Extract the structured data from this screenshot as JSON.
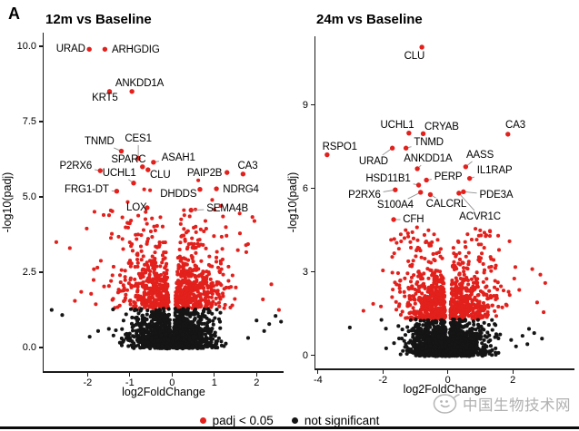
{
  "figure": {
    "tag": "A"
  },
  "colors": {
    "significant_red": "#e2201c",
    "not_significant_black": "#151515",
    "axis": "#1a1a1a",
    "leader_line": "#8f8f8f",
    "watermark_gray": "#b0b0b0",
    "background": "#ffffff"
  },
  "legend": {
    "items": [
      {
        "label": "padj < 0.05",
        "color": "#e2201c",
        "icon": "red-dot"
      },
      {
        "label": "not significant",
        "color": "#151515",
        "icon": "black-dot"
      }
    ]
  },
  "watermark": {
    "text": "中国生物技术网",
    "icon": "doodle-face-logo"
  },
  "chart_data": [
    {
      "type": "scatter",
      "subtype": "volcano",
      "title": "12m vs Baseline",
      "xlabel": "log2FoldChange",
      "ylabel": "-log10(padj)",
      "xlim": [
        -3.04,
        2.64
      ],
      "ylim": [
        -0.78,
        10.45
      ],
      "x_ticks": [
        {
          "value": -2,
          "label": "-2"
        },
        {
          "value": -1,
          "label": "-1"
        },
        {
          "value": 0,
          "label": "0"
        },
        {
          "value": 1,
          "label": "1"
        },
        {
          "value": 2,
          "label": "2"
        }
      ],
      "y_ticks": [
        {
          "value": 0,
          "label": "0.0"
        },
        {
          "value": 2.5,
          "label": "2.5"
        },
        {
          "value": 5,
          "label": "5.0"
        },
        {
          "value": 7.5,
          "label": "7.5"
        },
        {
          "value": 10,
          "label": "10.0"
        }
      ],
      "significance_threshold": 1.3,
      "labeled_genes": [
        {
          "name": "URAD",
          "x": -1.96,
          "y": 9.9,
          "lx": -2.4,
          "ly": 9.92
        },
        {
          "name": "ARHGDIG",
          "x": -1.59,
          "y": 9.9,
          "lx": -0.86,
          "ly": 9.88
        },
        {
          "name": "ANKDD1A",
          "x": -0.95,
          "y": 8.5,
          "lx": -0.77,
          "ly": 8.77
        },
        {
          "name": "KRT5",
          "x": -1.48,
          "y": 8.5,
          "lx": -1.59,
          "ly": 8.29
        },
        {
          "name": "TNMD",
          "x": -1.2,
          "y": 6.52,
          "lx": -1.72,
          "ly": 6.84
        },
        {
          "name": "CES1",
          "x": -0.8,
          "y": 6.28,
          "lx": -0.8,
          "ly": 6.93
        },
        {
          "name": "SPARC",
          "x": -0.7,
          "y": 6.0,
          "lx": -1.03,
          "ly": 6.24
        },
        {
          "name": "ASAH1",
          "x": -0.44,
          "y": 6.15,
          "lx": 0.15,
          "ly": 6.3
        },
        {
          "name": "P2RX6",
          "x": -1.7,
          "y": 5.87,
          "lx": -2.28,
          "ly": 6.03
        },
        {
          "name": "UCHL1",
          "x": -0.91,
          "y": 5.46,
          "lx": -1.25,
          "ly": 5.79
        },
        {
          "name": "CLU",
          "x": -0.57,
          "y": 5.9,
          "lx": -0.28,
          "ly": 5.73
        },
        {
          "name": "PAIP2B",
          "x": 1.3,
          "y": 5.81,
          "lx": 0.77,
          "ly": 5.79
        },
        {
          "name": "CA3",
          "x": 1.68,
          "y": 5.76,
          "lx": 1.79,
          "ly": 6.03
        },
        {
          "name": "FRG1-DT",
          "x": -1.31,
          "y": 5.19,
          "lx": -2.02,
          "ly": 5.25
        },
        {
          "name": "DHDDS",
          "x": 0.66,
          "y": 5.25,
          "lx": 0.15,
          "ly": 5.1
        },
        {
          "name": "NDRG4",
          "x": 1.05,
          "y": 5.27,
          "lx": 1.63,
          "ly": 5.25
        },
        {
          "name": "LOX",
          "x": -0.59,
          "y": 4.64,
          "lx": -0.84,
          "ly": 4.65
        },
        {
          "name": "SEMA4B",
          "x": 0.45,
          "y": 4.56,
          "lx": 1.31,
          "ly": 4.61
        }
      ],
      "cloud": {
        "seed": 12,
        "n_null": 1600,
        "n_sig": 700,
        "null_scale": 0.56,
        "sig_sigma": 0.85,
        "sig_uniform_frac": 0.3,
        "sig_uniform_span": 3.3,
        "sig_max": 4.85,
        "x_min_base": 0.01,
        "x_min_slope": 0.042,
        "x_sd": 0.42,
        "x_spread_growth": 0.15,
        "x_clip": 2.55
      },
      "extra_points": {
        "red": [
          [
            -2.74,
            3.5
          ],
          [
            -2.42,
            3.3
          ],
          [
            -2.15,
            1.85
          ],
          [
            -2.02,
            3.95
          ],
          [
            -1.85,
            2.6
          ],
          [
            -2.3,
            1.55
          ],
          [
            -1.62,
            4.4
          ],
          [
            -1.45,
            4.55
          ],
          [
            -1.05,
            4.83
          ],
          [
            -0.8,
            4.38
          ],
          [
            -0.66,
            5.25
          ],
          [
            -0.63,
            4.26
          ],
          [
            -0.52,
            5.22
          ],
          [
            0.28,
            4.56
          ],
          [
            0.62,
            5.55
          ],
          [
            0.95,
            4.9
          ],
          [
            1.15,
            4.7
          ],
          [
            1.6,
            4.45
          ],
          [
            1.75,
            3.4
          ],
          [
            1.95,
            4.2
          ],
          [
            2.15,
            1.6
          ],
          [
            2.35,
            2.1
          ],
          [
            2.53,
            1.25
          ]
        ],
        "black": [
          [
            -2.85,
            1.25
          ],
          [
            -2.6,
            1.08
          ],
          [
            -1.95,
            0.36
          ],
          [
            -1.75,
            0.55
          ],
          [
            1.8,
            0.32
          ],
          [
            2.0,
            0.9
          ],
          [
            2.18,
            0.55
          ],
          [
            2.3,
            0.78
          ],
          [
            2.45,
            1.05
          ],
          [
            2.58,
            0.86
          ]
        ]
      }
    },
    {
      "type": "scatter",
      "subtype": "volcano",
      "title": "24m vs Baseline",
      "xlabel": "log2FoldChange",
      "ylabel": "-log10(padj)",
      "xlim": [
        -4.08,
        3.9
      ],
      "ylim": [
        -0.47,
        11.47
      ],
      "x_ticks": [
        {
          "value": -4,
          "label": "-4"
        },
        {
          "value": -2,
          "label": "-2"
        },
        {
          "value": 0,
          "label": "0"
        },
        {
          "value": 2,
          "label": "2"
        }
      ],
      "y_ticks": [
        {
          "value": 0,
          "label": "0"
        },
        {
          "value": 3,
          "label": "3"
        },
        {
          "value": 6,
          "label": "6"
        },
        {
          "value": 9,
          "label": "9"
        }
      ],
      "significance_threshold": 1.3,
      "labeled_genes": [
        {
          "name": "CLU",
          "x": -0.8,
          "y": 11.08,
          "lx": -1.03,
          "ly": 10.75
        },
        {
          "name": "UCHL1",
          "x": -1.2,
          "y": 7.99,
          "lx": -1.56,
          "ly": 8.27
        },
        {
          "name": "CRYAB",
          "x": -0.76,
          "y": 7.97,
          "lx": -0.19,
          "ly": 8.21
        },
        {
          "name": "CA3",
          "x": 1.85,
          "y": 7.95,
          "lx": 2.08,
          "ly": 8.27
        },
        {
          "name": "TNMD",
          "x": -1.29,
          "y": 7.45,
          "lx": -0.59,
          "ly": 7.66
        },
        {
          "name": "URAD",
          "x": -1.71,
          "y": 7.45,
          "lx": -2.29,
          "ly": 6.97
        },
        {
          "name": "RSPO1",
          "x": -3.72,
          "y": 7.21,
          "lx": -3.33,
          "ly": 7.49
        },
        {
          "name": "ANKDD1A",
          "x": -0.94,
          "y": 6.71,
          "lx": -0.61,
          "ly": 7.06
        },
        {
          "name": "AASS",
          "x": 0.55,
          "y": 6.78,
          "lx": 0.99,
          "ly": 7.2
        },
        {
          "name": "IL1RAP",
          "x": 0.67,
          "y": 6.36,
          "lx": 1.44,
          "ly": 6.64
        },
        {
          "name": "HSD11B1",
          "x": -0.9,
          "y": 6.12,
          "lx": -1.84,
          "ly": 6.35
        },
        {
          "name": "PERP",
          "x": -0.66,
          "y": 6.3,
          "lx": 0.01,
          "ly": 6.41
        },
        {
          "name": "P2RX6",
          "x": -1.62,
          "y": 5.95,
          "lx": -2.57,
          "ly": 5.76
        },
        {
          "name": "PDE3A",
          "x": 0.48,
          "y": 5.88,
          "lx": 1.49,
          "ly": 5.76
        },
        {
          "name": "S100A4",
          "x": -0.84,
          "y": 5.86,
          "lx": -1.62,
          "ly": 5.4
        },
        {
          "name": "CALCRL",
          "x": -0.54,
          "y": 5.78,
          "lx": -0.05,
          "ly": 5.43
        },
        {
          "name": "ACVR1C",
          "x": 0.34,
          "y": 5.83,
          "lx": 0.99,
          "ly": 4.98
        },
        {
          "name": "CFH",
          "x": -1.67,
          "y": 4.88,
          "lx": -1.06,
          "ly": 4.88
        }
      ],
      "cloud": {
        "seed": 99,
        "n_null": 1700,
        "n_sig": 750,
        "null_scale": 0.56,
        "sig_sigma": 0.85,
        "sig_uniform_frac": 0.3,
        "sig_uniform_span": 3.2,
        "sig_max": 4.6,
        "x_min_base": 0.01,
        "x_min_slope": 0.042,
        "x_sd": 0.5,
        "x_spread_growth": 0.15,
        "x_clip": 2.95
      },
      "extra_points": {
        "red": [
          [
            -2.0,
            3.05
          ],
          [
            -2.3,
            1.85
          ],
          [
            -1.75,
            4.15
          ],
          [
            -1.45,
            4.35
          ],
          [
            -2.6,
            1.6
          ],
          [
            -1.3,
            4.5
          ],
          [
            -0.95,
            4.6
          ],
          [
            0.85,
            4.55
          ],
          [
            1.3,
            4.45
          ],
          [
            1.55,
            4.3
          ],
          [
            1.9,
            4.1
          ],
          [
            2.2,
            2.35
          ],
          [
            2.6,
            3.1
          ],
          [
            2.85,
            2.9
          ],
          [
            2.75,
            1.9
          ],
          [
            2.95,
            1.55
          ],
          [
            3.0,
            2.6
          ]
        ],
        "black": [
          [
            -3.02,
            1.0
          ],
          [
            -1.9,
            0.25
          ],
          [
            1.95,
            0.55
          ],
          [
            2.1,
            0.32
          ],
          [
            2.3,
            0.7
          ],
          [
            2.45,
            0.4
          ],
          [
            2.5,
            0.95
          ],
          [
            2.66,
            0.8
          ],
          [
            2.9,
            0.6
          ]
        ]
      }
    }
  ]
}
